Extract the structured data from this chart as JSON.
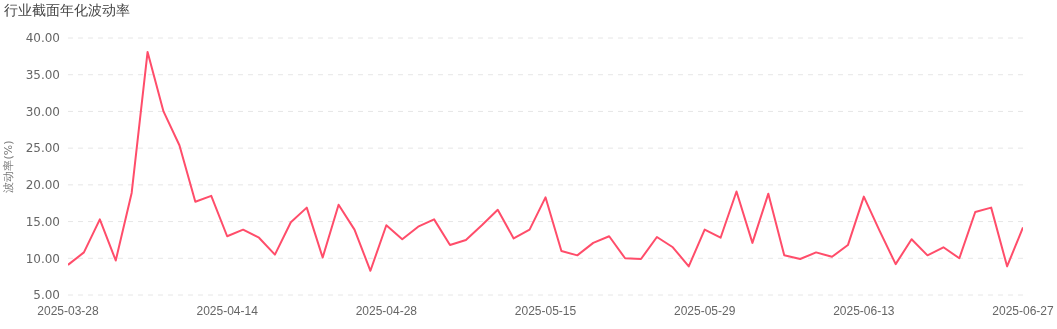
{
  "chart_data": {
    "type": "line",
    "title": "行业截面年化波动率",
    "ylabel": "波动率(%)",
    "categories": [
      "2025-03-28",
      null,
      null,
      null,
      null,
      null,
      null,
      null,
      null,
      null,
      "2025-04-14",
      null,
      null,
      null,
      null,
      null,
      null,
      null,
      null,
      null,
      "2025-04-28",
      null,
      null,
      null,
      null,
      null,
      null,
      null,
      null,
      null,
      "2025-05-15",
      null,
      null,
      null,
      null,
      null,
      null,
      null,
      null,
      null,
      "2025-05-29",
      null,
      null,
      null,
      null,
      null,
      null,
      null,
      null,
      null,
      "2025-06-13",
      null,
      null,
      null,
      null,
      null,
      null,
      null,
      null,
      null,
      "2025-06-27"
    ],
    "series": [
      {
        "color": "#ff4d6a",
        "values": [
          9.1,
          10.8,
          15.3,
          9.7,
          18.9,
          38.1,
          30.0,
          25.4,
          17.7,
          18.5,
          13.0,
          13.9,
          12.8,
          10.5,
          14.9,
          16.9,
          10.1,
          17.3,
          13.9,
          8.3,
          14.5,
          12.6,
          14.3,
          15.3,
          11.8,
          12.5,
          14.5,
          16.6,
          12.7,
          13.9,
          18.3,
          11.0,
          10.4,
          12.1,
          13.0,
          10.0,
          9.9,
          12.9,
          11.5,
          8.9,
          13.9,
          12.8,
          19.1,
          12.1,
          18.8,
          10.4,
          9.9,
          10.8,
          10.2,
          11.8,
          18.4,
          13.7,
          9.2,
          12.6,
          10.4,
          11.5,
          10.0,
          16.3,
          16.9,
          8.9,
          14.2
        ]
      }
    ],
    "ylim": [
      5,
      40
    ],
    "yticks": [
      {
        "value": 5,
        "label": "5.00"
      },
      {
        "value": 10,
        "label": "10.00"
      },
      {
        "value": 15,
        "label": "15.00"
      },
      {
        "value": 20,
        "label": "20.00"
      },
      {
        "value": 25,
        "label": "25.00"
      },
      {
        "value": 30,
        "label": "30.00"
      },
      {
        "value": 35,
        "label": "35.00"
      },
      {
        "value": 40,
        "label": "40.00"
      }
    ],
    "grid": "y",
    "legend": false,
    "marker": "none",
    "line_style": "solid"
  }
}
